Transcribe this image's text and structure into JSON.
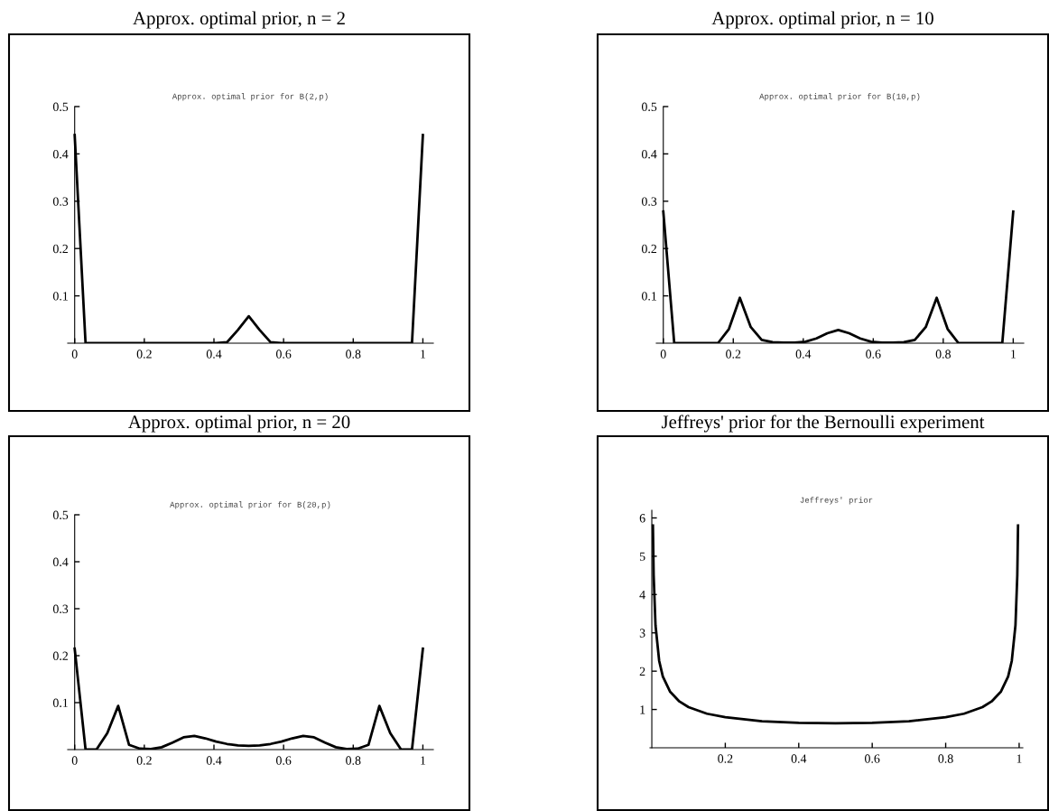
{
  "chart_data": [
    {
      "type": "line",
      "title": "Approx. optimal prior, n = 2",
      "subtitle": "Approx. optimal prior for B(2,p)",
      "color": "#000000",
      "xlim": [
        -0.02,
        1.03
      ],
      "ylim": [
        0,
        0.5
      ],
      "xticks": [
        0,
        0.2,
        0.4,
        0.6,
        0.8,
        1
      ],
      "yticks": [
        0.1,
        0.2,
        0.3,
        0.4,
        0.5
      ],
      "x": [
        0,
        0.03125,
        0.40625,
        0.4375,
        0.46875,
        0.5,
        0.53125,
        0.5625,
        0.59375,
        0.96875,
        1
      ],
      "values": [
        0.44,
        0,
        0,
        0.002,
        0.028,
        0.057,
        0.028,
        0.002,
        0,
        0,
        0.44
      ]
    },
    {
      "type": "line",
      "title": "Approx. optimal prior, n = 10",
      "subtitle": "Approx. optimal prior for B(10,p)",
      "color": "#000000",
      "xlim": [
        -0.02,
        1.03
      ],
      "ylim": [
        0,
        0.5
      ],
      "xticks": [
        0,
        0.2,
        0.4,
        0.6,
        0.8,
        1
      ],
      "yticks": [
        0.1,
        0.2,
        0.3,
        0.4,
        0.5
      ],
      "x": [
        0,
        0.03125,
        0.15625,
        0.1875,
        0.21875,
        0.25,
        0.28125,
        0.3125,
        0.34375,
        0.375,
        0.40625,
        0.4375,
        0.46875,
        0.5,
        0.53125,
        0.5625,
        0.59375,
        0.625,
        0.65625,
        0.6875,
        0.71875,
        0.75,
        0.78125,
        0.8125,
        0.84375,
        0.96875,
        1
      ],
      "values": [
        0.278,
        0,
        0,
        0.03,
        0.096,
        0.034,
        0.007,
        0.002,
        0.001,
        0.001,
        0.003,
        0.01,
        0.021,
        0.028,
        0.021,
        0.01,
        0.003,
        0.001,
        0.001,
        0.002,
        0.007,
        0.034,
        0.096,
        0.03,
        0,
        0,
        0.278
      ]
    },
    {
      "type": "line",
      "title": "Approx. optimal prior, n = 20",
      "subtitle": "Approx. optimal prior for B(20,p)",
      "color": "#000000",
      "xlim": [
        -0.02,
        1.03
      ],
      "ylim": [
        0,
        0.5
      ],
      "xticks": [
        0,
        0.2,
        0.4,
        0.6,
        0.8,
        1
      ],
      "yticks": [
        0.1,
        0.2,
        0.3,
        0.4,
        0.5
      ],
      "x": [
        0,
        0.03125,
        0.0625,
        0.09375,
        0.125,
        0.15625,
        0.1875,
        0.21875,
        0.25,
        0.28125,
        0.3125,
        0.34375,
        0.375,
        0.40625,
        0.4375,
        0.46875,
        0.5,
        0.53125,
        0.5625,
        0.59375,
        0.625,
        0.65625,
        0.6875,
        0.71875,
        0.75,
        0.78125,
        0.8125,
        0.84375,
        0.875,
        0.90625,
        0.9375,
        0.96875,
        1
      ],
      "values": [
        0.215,
        0,
        0,
        0.035,
        0.093,
        0.01,
        0.002,
        0.001,
        0.005,
        0.015,
        0.026,
        0.029,
        0.024,
        0.017,
        0.012,
        0.009,
        0.008,
        0.009,
        0.012,
        0.017,
        0.024,
        0.029,
        0.026,
        0.015,
        0.005,
        0.001,
        0.002,
        0.01,
        0.093,
        0.035,
        0,
        0,
        0.215
      ]
    },
    {
      "type": "line",
      "title": "Jeffreys' prior for the Bernoulli experiment",
      "subtitle": "Jeffreys' prior",
      "color": "#000000",
      "xlim": [
        -0.005,
        1.01
      ],
      "ylim": [
        0,
        6.2
      ],
      "xticks": [
        0.2,
        0.4,
        0.6,
        0.8,
        1
      ],
      "yticks": [
        1,
        2,
        3,
        4,
        5,
        6
      ],
      "x": [
        0.003,
        0.005,
        0.01,
        0.02,
        0.03,
        0.05,
        0.075,
        0.1,
        0.15,
        0.2,
        0.3,
        0.4,
        0.5,
        0.6,
        0.7,
        0.8,
        0.85,
        0.9,
        0.925,
        0.95,
        0.97,
        0.98,
        0.99,
        0.995,
        0.997
      ],
      "values": [
        5.8,
        4.51,
        3.2,
        2.27,
        1.86,
        1.46,
        1.21,
        1.06,
        0.89,
        0.8,
        0.69,
        0.65,
        0.64,
        0.65,
        0.69,
        0.8,
        0.89,
        1.06,
        1.21,
        1.46,
        1.86,
        2.27,
        3.2,
        4.51,
        5.8
      ]
    }
  ]
}
